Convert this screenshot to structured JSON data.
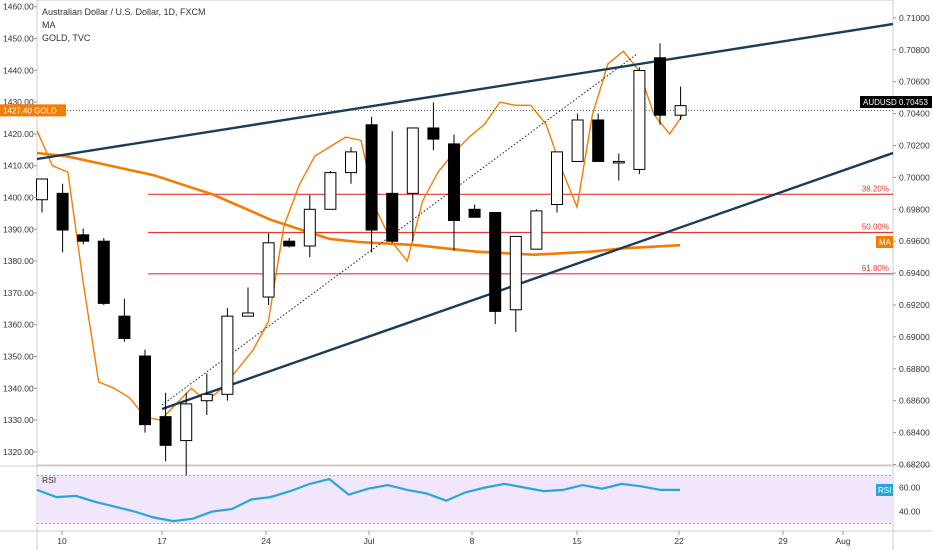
{
  "legend": {
    "title": "Australian Dollar / U.S. Dollar, 1D, FXCM",
    "ma": "MA",
    "gold": "GOLD, TVC"
  },
  "colors": {
    "up_candle": "#ffffff",
    "down_candle": "#000000",
    "candle_outline": "#000000",
    "gold_line": "#f57c00",
    "ma_line": "#f57c00",
    "trend_lines": "#1c3d5a",
    "fib_lines": "#e53935",
    "rsi_line": "#29a6d9",
    "rsi_band": "#f1e6fb",
    "gold_tag": "#f57c00",
    "audusd_tag": "#000000",
    "rsi_tag": "#29a6d9"
  },
  "price_tags": {
    "gold_value": "1427.40",
    "gold_label": "GOLD",
    "audusd_label": "AUDUSD",
    "audusd_value": "0.70453",
    "ma_label": "MA",
    "rsi_label": "RSI"
  },
  "chart_data": {
    "type": "candlestick",
    "left_axis": {
      "name": "GOLD",
      "ticks": [
        "1460.00",
        "1450.00",
        "1440.00",
        "1430.00",
        "1420.00",
        "1410.00",
        "1400.00",
        "1390.00",
        "1380.00",
        "1370.00",
        "1360.00",
        "1350.00",
        "1340.00",
        "1330.00",
        "1320.00"
      ],
      "range": [
        1315,
        1464
      ]
    },
    "right_axis": {
      "name": "AUDUSD",
      "ticks": [
        "0.71000",
        "0.70800",
        "0.70600",
        "0.70400",
        "0.70200",
        "0.70000",
        "0.69800",
        "0.69600",
        "0.69400",
        "0.69200",
        "0.69000",
        "0.68800",
        "0.68600",
        "0.68400",
        "0.68200"
      ]
    },
    "x_axis": {
      "ticks": [
        "10",
        "17",
        "24",
        "Jul",
        "8",
        "15",
        "22",
        "29",
        "Aug"
      ]
    },
    "audusd_candles": [
      {
        "o": 0.6986,
        "h": 0.6985,
        "l": 0.6978,
        "c": 0.6999
      },
      {
        "o": 0.699,
        "h": 0.6996,
        "l": 0.6953,
        "c": 0.6967
      },
      {
        "o": 0.6964,
        "h": 0.6968,
        "l": 0.6958,
        "c": 0.696
      },
      {
        "o": 0.696,
        "h": 0.6962,
        "l": 0.692,
        "c": 0.6921
      },
      {
        "o": 0.6913,
        "h": 0.6924,
        "l": 0.6897,
        "c": 0.6899
      },
      {
        "o": 0.6888,
        "h": 0.6892,
        "l": 0.684,
        "c": 0.6845
      },
      {
        "o": 0.685,
        "h": 0.6865,
        "l": 0.6822,
        "c": 0.6832
      },
      {
        "o": 0.6835,
        "h": 0.6865,
        "l": 0.6808,
        "c": 0.6858
      },
      {
        "o": 0.686,
        "h": 0.6877,
        "l": 0.6851,
        "c": 0.6864
      },
      {
        "o": 0.6864,
        "h": 0.6918,
        "l": 0.686,
        "c": 0.6913
      },
      {
        "o": 0.6913,
        "h": 0.6931,
        "l": 0.6915,
        "c": 0.6915
      },
      {
        "o": 0.6925,
        "h": 0.6965,
        "l": 0.692,
        "c": 0.6959
      },
      {
        "o": 0.696,
        "h": 0.6962,
        "l": 0.6956,
        "c": 0.6957
      },
      {
        "o": 0.6957,
        "h": 0.6989,
        "l": 0.695,
        "c": 0.698
      },
      {
        "o": 0.698,
        "h": 0.7004,
        "l": 0.6984,
        "c": 0.7003
      },
      {
        "o": 0.7003,
        "h": 0.7019,
        "l": 0.6996,
        "c": 0.7016
      },
      {
        "o": 0.7033,
        "h": 0.7038,
        "l": 0.6953,
        "c": 0.6967
      },
      {
        "o": 0.699,
        "h": 0.7029,
        "l": 0.6959,
        "c": 0.696
      },
      {
        "o": 0.699,
        "h": 0.7031,
        "l": 0.696,
        "c": 0.7031
      },
      {
        "o": 0.7031,
        "h": 0.7047,
        "l": 0.7017,
        "c": 0.7024
      },
      {
        "o": 0.7021,
        "h": 0.7027,
        "l": 0.6954,
        "c": 0.6973
      },
      {
        "o": 0.698,
        "h": 0.6983,
        "l": 0.6975,
        "c": 0.6975
      },
      {
        "o": 0.6978,
        "h": 0.6978,
        "l": 0.6908,
        "c": 0.6916
      },
      {
        "o": 0.6917,
        "h": 0.6962,
        "l": 0.6903,
        "c": 0.6963
      },
      {
        "o": 0.6955,
        "h": 0.698,
        "l": 0.6955,
        "c": 0.6979
      },
      {
        "o": 0.6983,
        "h": 0.7016,
        "l": 0.6978,
        "c": 0.7016
      },
      {
        "o": 0.701,
        "h": 0.704,
        "l": 0.7012,
        "c": 0.7036
      },
      {
        "o": 0.7036,
        "h": 0.704,
        "l": 0.701,
        "c": 0.701
      },
      {
        "o": 0.701,
        "h": 0.7015,
        "l": 0.6998,
        "c": 0.701
      },
      {
        "o": 0.7005,
        "h": 0.7069,
        "l": 0.7002,
        "c": 0.7067
      },
      {
        "o": 0.7075,
        "h": 0.7084,
        "l": 0.7033,
        "c": 0.7039
      },
      {
        "o": 0.7039,
        "h": 0.7057,
        "l": 0.7036,
        "c": 0.7045
      }
    ],
    "gold_line": [
      1421,
      1410,
      1408,
      1373,
      1342,
      1340,
      1337,
      1331,
      1330,
      1335,
      1340,
      1336,
      1340,
      1346,
      1352,
      1361,
      1391,
      1404,
      1413,
      1416,
      1419,
      1418,
      1396,
      1386,
      1380,
      1399,
      1408,
      1414,
      1419,
      1423,
      1430,
      1429,
      1429,
      1423,
      1409,
      1397,
      1426,
      1442,
      1446,
      1440,
      1426,
      1420,
      1427
    ],
    "ma_line": [
      1414,
      1413,
      1411,
      1409,
      1407,
      1404,
      1401,
      1397,
      1393,
      1390,
      1387,
      1386,
      1385.5,
      1385,
      1384,
      1383,
      1382.5,
      1382,
      1382.5,
      1383,
      1384,
      1384.5,
      1385
    ],
    "fib_levels": [
      {
        "label": "38.20%",
        "value": 1401
      },
      {
        "label": "50.00%",
        "value": 1389
      },
      {
        "label": "61.80%",
        "value": 1376
      }
    ],
    "rsi": {
      "ticks": [
        "60.00",
        "40.00"
      ],
      "band": [
        30,
        70
      ],
      "values": [
        58,
        52,
        53,
        48,
        44,
        40,
        35,
        32,
        34,
        40,
        42,
        50,
        52,
        57,
        63,
        67,
        54,
        59,
        62,
        58,
        55,
        49,
        56,
        60,
        63,
        60,
        57,
        58,
        62,
        59,
        63,
        61,
        58,
        58
      ]
    }
  }
}
